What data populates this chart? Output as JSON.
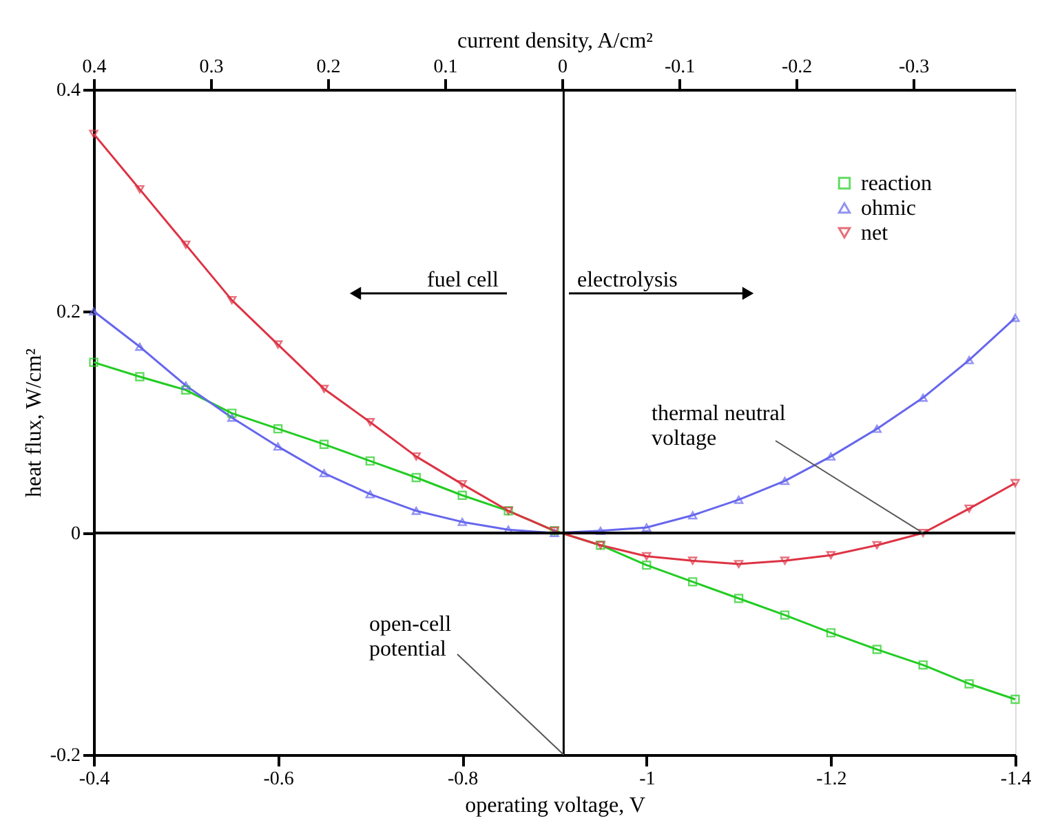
{
  "chart_data": {
    "type": "line",
    "xlabel": "operating voltage, V",
    "ylabel": "heat flux, W/cm²",
    "x2label": "current density, A/cm²",
    "x": [
      -0.4,
      -0.45,
      -0.5,
      -0.55,
      -0.6,
      -0.65,
      -0.7,
      -0.75,
      -0.8,
      -0.85,
      -0.9,
      -0.95,
      -1.0,
      -1.05,
      -1.1,
      -1.15,
      -1.2,
      -1.25,
      -1.3,
      -1.35,
      -1.4
    ],
    "series": [
      {
        "name": "reaction",
        "color": "#22cc22",
        "marker": "square",
        "values": [
          0.154,
          0.141,
          0.129,
          0.108,
          0.094,
          0.08,
          0.065,
          0.05,
          0.034,
          0.02,
          0.002,
          -0.011,
          -0.029,
          -0.044,
          -0.059,
          -0.074,
          -0.09,
          -0.105,
          -0.119,
          -0.136,
          -0.15
        ]
      },
      {
        "name": "ohmic",
        "color": "#6666ee",
        "marker": "triangle",
        "values": [
          0.2,
          0.168,
          0.133,
          0.104,
          0.078,
          0.054,
          0.035,
          0.02,
          0.01,
          0.003,
          0.0,
          0.002,
          0.005,
          0.016,
          0.03,
          0.047,
          0.069,
          0.094,
          0.122,
          0.156,
          0.194
        ]
      },
      {
        "name": "net",
        "color": "#dd3344",
        "marker": "triangle-down",
        "values": [
          0.36,
          0.31,
          0.26,
          0.21,
          0.17,
          0.13,
          0.1,
          0.069,
          0.044,
          0.02,
          0.002,
          -0.011,
          -0.021,
          -0.025,
          -0.028,
          -0.025,
          -0.02,
          -0.011,
          0.0,
          0.022,
          0.045
        ]
      }
    ],
    "xlim": [
      -0.4,
      -1.4
    ],
    "xticks": [
      -0.4,
      -0.6,
      -0.8,
      {
        "value": -1.0,
        "label": "-1"
      },
      -1.2,
      -1.4
    ],
    "ylim": [
      -0.2,
      0.4
    ],
    "yticks": [
      -0.2,
      {
        "value": 0,
        "label": "0"
      },
      0.2,
      0.4
    ],
    "x2lim": [
      0.4,
      -0.387
    ],
    "x2ticks": [
      0.4,
      0.3,
      0.2,
      0.1,
      {
        "value": 0,
        "label": "0"
      },
      -0.1,
      -0.2,
      -0.3
    ],
    "ref_lines": [
      {
        "axis": "x",
        "value": -0.91,
        "color": "#000000"
      },
      {
        "axis": "y",
        "value": 0,
        "color": "#000000"
      }
    ],
    "annotations": [
      "fuel cell",
      "electrolysis",
      {
        "text": "thermal neutral voltage",
        "x": -1.3,
        "y": 0
      },
      {
        "text": "open-cell potential",
        "x": -0.91,
        "y": -0.2
      }
    ],
    "legend": "top right",
    "grid": false,
    "line_style": "solid"
  }
}
